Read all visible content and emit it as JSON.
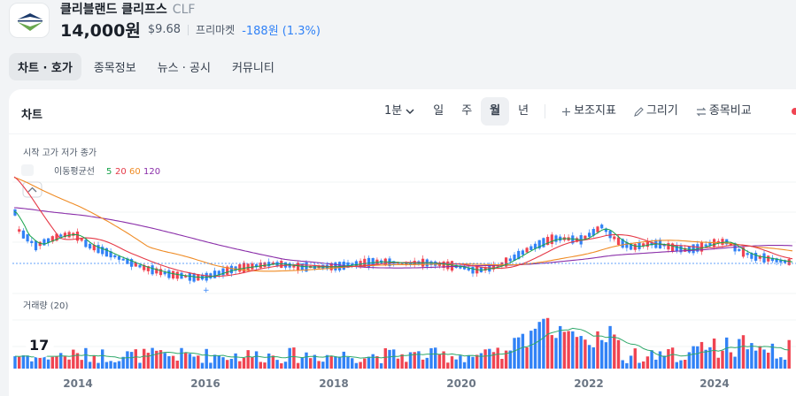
{
  "stock": {
    "name": "클리블랜드 클리프스",
    "ticker": "CLF",
    "price": "14,000원",
    "usd_price": "$9.68",
    "market": "프리마켓",
    "change": "-188원 (1.3%)"
  },
  "tabs": [
    "차트 · 호가",
    "종목정보",
    "뉴스 · 공시",
    "커뮤니티"
  ],
  "panel_title": "차트",
  "toolbar": {
    "interval": "1분",
    "day": "일",
    "week": "주",
    "month": "월",
    "year": "년",
    "indicators": "보조지표",
    "draw": "그리기",
    "compare": "종목비교"
  },
  "ohlc_label": "시작 고가 저가 종가",
  "ma": {
    "label": "이동평균선",
    "periods": [
      "5",
      "20",
      "60",
      "120"
    ]
  },
  "volume_label": "거래량 (20)",
  "colors": {
    "up": "#f04452",
    "down": "#3182f6",
    "ma5": "#16a34a",
    "ma20": "#e53947",
    "ma60": "#ef8b24",
    "ma120": "#8a2ea9",
    "vol_ma": "#2fa86a"
  },
  "chart_data": {
    "type": "candlestick",
    "x_ticks": [
      "2014",
      "2016",
      "2018",
      "2020",
      "2022",
      "2024"
    ],
    "current_price": 14000
  }
}
